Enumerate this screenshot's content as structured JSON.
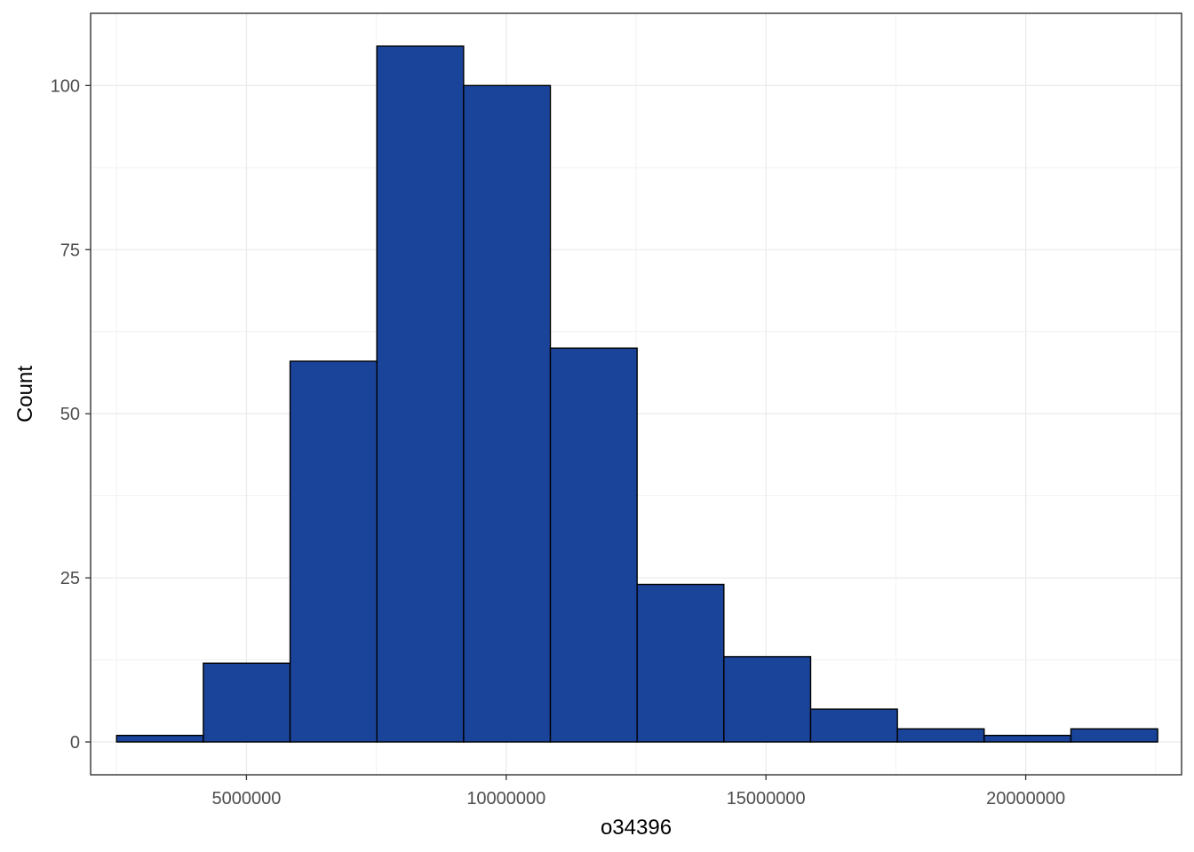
{
  "chart_data": {
    "type": "bar",
    "subtype": "histogram",
    "xlabel": "o34396",
    "ylabel": "Count",
    "xlim": [
      2000000,
      23000000
    ],
    "ylim": [
      -5,
      111
    ],
    "x_ticks": [
      {
        "value": 5000000,
        "label": "5000000"
      },
      {
        "value": 10000000,
        "label": "10000000"
      },
      {
        "value": 15000000,
        "label": "15000000"
      },
      {
        "value": 20000000,
        "label": "20000000"
      }
    ],
    "y_ticks": [
      {
        "value": 0,
        "label": "0"
      },
      {
        "value": 25,
        "label": "25"
      },
      {
        "value": 50,
        "label": "50"
      },
      {
        "value": 75,
        "label": "75"
      },
      {
        "value": 100,
        "label": "100"
      }
    ],
    "bins": [
      {
        "x0": 2500000,
        "x1": 4170000,
        "count": 1
      },
      {
        "x0": 4170000,
        "x1": 5840000,
        "count": 12
      },
      {
        "x0": 5840000,
        "x1": 7510000,
        "count": 58
      },
      {
        "x0": 7510000,
        "x1": 9180000,
        "count": 106
      },
      {
        "x0": 9180000,
        "x1": 10850000,
        "count": 100
      },
      {
        "x0": 10850000,
        "x1": 12520000,
        "count": 60
      },
      {
        "x0": 12520000,
        "x1": 14190000,
        "count": 24
      },
      {
        "x0": 14190000,
        "x1": 15860000,
        "count": 13
      },
      {
        "x0": 15860000,
        "x1": 17530000,
        "count": 5
      },
      {
        "x0": 17530000,
        "x1": 19200000,
        "count": 2
      },
      {
        "x0": 19200000,
        "x1": 20870000,
        "count": 1
      },
      {
        "x0": 20870000,
        "x1": 22540000,
        "count": 2
      }
    ],
    "bar_fill": "#1a4499",
    "bar_stroke": "#000000",
    "grid": true,
    "legend": "none"
  }
}
